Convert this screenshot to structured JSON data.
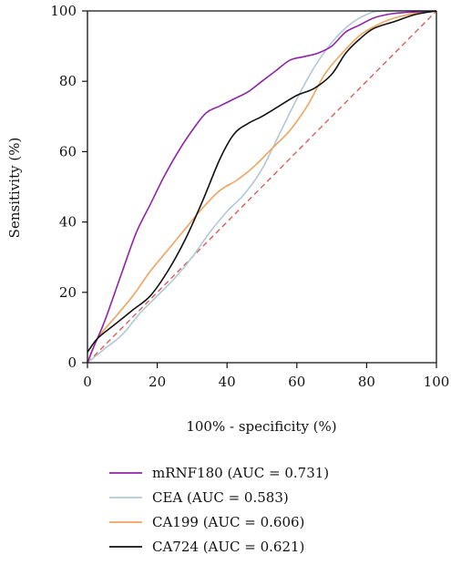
{
  "chart_data": {
    "type": "line",
    "title": "",
    "xlabel": "100% - specificity (%)",
    "ylabel": "Sensitivity (%)",
    "xlim": [
      0,
      100
    ],
    "ylim": [
      0,
      100
    ],
    "x_ticks": [
      "0",
      "20",
      "40",
      "60",
      "80",
      "100"
    ],
    "y_ticks": [
      "0",
      "20",
      "40",
      "60",
      "80",
      "100"
    ],
    "grid": false,
    "legend_position": "bottom",
    "reference_line": {
      "points": [
        [
          0,
          0
        ],
        [
          100,
          100
        ]
      ],
      "color": "#d9534f",
      "style": "dashed"
    },
    "series": [
      {
        "name": "mRNF180 (AUC = 0.731)",
        "color": "#8e24aa",
        "points": [
          [
            0,
            0
          ],
          [
            2,
            5
          ],
          [
            5,
            12
          ],
          [
            10,
            26
          ],
          [
            14,
            37
          ],
          [
            18,
            45
          ],
          [
            22,
            53
          ],
          [
            26,
            60
          ],
          [
            30,
            66
          ],
          [
            34,
            71
          ],
          [
            38,
            73
          ],
          [
            42,
            75
          ],
          [
            46,
            77
          ],
          [
            50,
            80
          ],
          [
            54,
            83
          ],
          [
            58,
            86
          ],
          [
            62,
            87
          ],
          [
            66,
            88
          ],
          [
            70,
            90
          ],
          [
            74,
            94
          ],
          [
            78,
            96
          ],
          [
            82,
            98
          ],
          [
            86,
            99
          ],
          [
            90,
            99.5
          ],
          [
            100,
            100
          ]
        ]
      },
      {
        "name": "CEA (AUC = 0.583)",
        "color": "#b0c8d4",
        "points": [
          [
            0,
            0
          ],
          [
            5,
            4
          ],
          [
            10,
            8
          ],
          [
            15,
            14
          ],
          [
            20,
            19
          ],
          [
            25,
            24
          ],
          [
            30,
            30
          ],
          [
            35,
            37
          ],
          [
            40,
            43
          ],
          [
            45,
            48
          ],
          [
            50,
            55
          ],
          [
            55,
            65
          ],
          [
            60,
            75
          ],
          [
            65,
            84
          ],
          [
            70,
            91
          ],
          [
            75,
            96
          ],
          [
            80,
            99
          ],
          [
            85,
            100
          ],
          [
            100,
            100
          ]
        ]
      },
      {
        "name": "CA199 (AUC = 0.606)",
        "color": "#f0a35e",
        "points": [
          [
            0,
            0
          ],
          [
            3,
            7
          ],
          [
            8,
            13
          ],
          [
            13,
            19
          ],
          [
            18,
            26
          ],
          [
            23,
            32
          ],
          [
            28,
            38
          ],
          [
            33,
            44
          ],
          [
            38,
            49
          ],
          [
            43,
            52
          ],
          [
            48,
            56
          ],
          [
            53,
            61
          ],
          [
            58,
            66
          ],
          [
            63,
            73
          ],
          [
            68,
            82
          ],
          [
            73,
            88
          ],
          [
            78,
            93
          ],
          [
            83,
            96
          ],
          [
            88,
            98
          ],
          [
            95,
            99.5
          ],
          [
            100,
            100
          ]
        ]
      },
      {
        "name": "CA724 (AUC = 0.621)",
        "color": "#111111",
        "points": [
          [
            0,
            3
          ],
          [
            3,
            7
          ],
          [
            8,
            11
          ],
          [
            13,
            15
          ],
          [
            18,
            19
          ],
          [
            23,
            26
          ],
          [
            28,
            35
          ],
          [
            33,
            46
          ],
          [
            38,
            58
          ],
          [
            42,
            65
          ],
          [
            46,
            68
          ],
          [
            50,
            70
          ],
          [
            55,
            73
          ],
          [
            60,
            76
          ],
          [
            65,
            78
          ],
          [
            70,
            82
          ],
          [
            74,
            88
          ],
          [
            78,
            92
          ],
          [
            82,
            95
          ],
          [
            88,
            97
          ],
          [
            94,
            99
          ],
          [
            100,
            100
          ]
        ]
      }
    ]
  }
}
